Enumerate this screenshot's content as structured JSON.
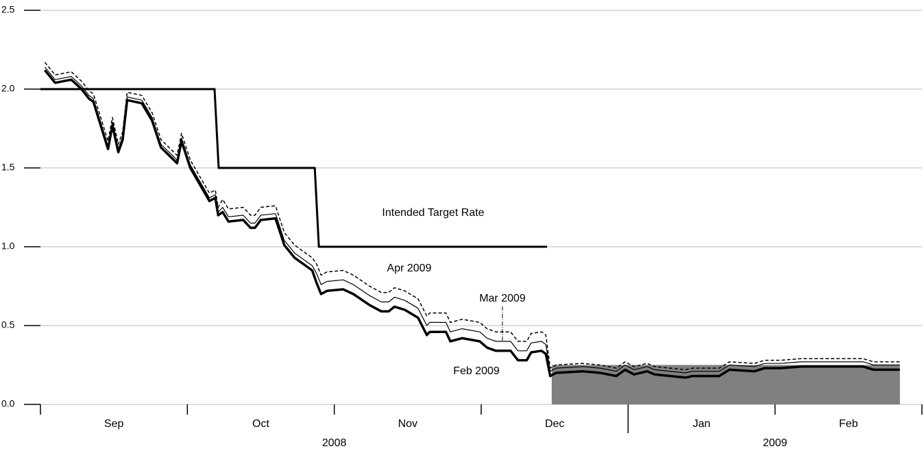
{
  "chart_data": {
    "type": "line",
    "ylim": [
      0,
      2.5
    ],
    "yticks": [
      {
        "value": 0,
        "label": "0.0"
      },
      {
        "value": 0.5,
        "label": "0.5"
      },
      {
        "value": 1,
        "label": "1.0"
      },
      {
        "value": 1.5,
        "label": "1.5"
      },
      {
        "value": 2,
        "label": "2.0"
      },
      {
        "value": 2.5,
        "label": "2.5"
      }
    ],
    "grid": true,
    "xlim": [
      0,
      6
    ],
    "months": [
      "Sep",
      "Oct",
      "Nov",
      "Dec",
      "Jan",
      "Feb"
    ],
    "years": [
      "2008",
      "2009"
    ],
    "x": [
      0.03,
      0.1,
      0.21,
      0.28,
      0.33,
      0.36,
      0.46,
      0.49,
      0.53,
      0.56,
      0.59,
      0.69,
      0.76,
      0.82,
      0.93,
      0.96,
      1.02,
      1.15,
      1.19,
      1.21,
      1.24,
      1.28,
      1.38,
      1.43,
      1.46,
      1.5,
      1.6,
      1.66,
      1.73,
      1.85,
      1.88,
      1.91,
      1.95,
      2.06,
      2.13,
      2.24,
      2.32,
      2.37,
      2.41,
      2.48,
      2.57,
      2.63,
      2.65,
      2.76,
      2.79,
      2.87,
      2.99,
      3.04,
      3.1,
      3.2,
      3.25,
      3.31,
      3.34,
      3.41,
      3.44,
      3.47,
      3.51,
      3.69,
      3.81,
      3.92,
      3.98,
      4.04,
      4.13,
      4.18,
      4.39,
      4.44,
      4.62,
      4.69,
      4.86,
      4.93,
      5.04,
      5.18,
      5.32,
      5.6,
      5.67,
      5.85
    ],
    "shaded": {
      "x": [
        3.48,
        5.85
      ],
      "y": [
        0,
        0.25
      ],
      "color": "#808080"
    },
    "series": [
      {
        "name": "Feb 2009",
        "color": "#000000",
        "style": "thick",
        "values": [
          2.12,
          2.04,
          2.06,
          2.0,
          1.94,
          1.92,
          1.62,
          1.77,
          1.6,
          1.68,
          1.93,
          1.91,
          1.8,
          1.63,
          1.53,
          1.67,
          1.5,
          1.29,
          1.31,
          1.2,
          1.22,
          1.16,
          1.17,
          1.12,
          1.12,
          1.17,
          1.18,
          1.01,
          0.93,
          0.85,
          0.77,
          0.7,
          0.72,
          0.73,
          0.7,
          0.63,
          0.59,
          0.59,
          0.62,
          0.6,
          0.55,
          0.44,
          0.46,
          0.46,
          0.4,
          0.42,
          0.4,
          0.36,
          0.34,
          0.34,
          0.28,
          0.28,
          0.33,
          0.34,
          0.32,
          0.18,
          0.2,
          0.21,
          0.2,
          0.18,
          0.22,
          0.19,
          0.21,
          0.19,
          0.17,
          0.18,
          0.18,
          0.22,
          0.21,
          0.23,
          0.23,
          0.24,
          0.24,
          0.24,
          0.22,
          0.22
        ]
      },
      {
        "name": "Mar 2009",
        "color": "#000000",
        "style": "thin",
        "values": [
          2.14,
          2.06,
          2.08,
          2.02,
          1.96,
          1.94,
          1.64,
          1.79,
          1.62,
          1.7,
          1.95,
          1.93,
          1.82,
          1.65,
          1.55,
          1.69,
          1.52,
          1.31,
          1.33,
          1.22,
          1.25,
          1.19,
          1.2,
          1.15,
          1.15,
          1.2,
          1.21,
          1.04,
          0.96,
          0.88,
          0.83,
          0.76,
          0.78,
          0.79,
          0.76,
          0.69,
          0.65,
          0.65,
          0.68,
          0.66,
          0.61,
          0.5,
          0.52,
          0.52,
          0.46,
          0.48,
          0.46,
          0.42,
          0.4,
          0.4,
          0.34,
          0.34,
          0.39,
          0.4,
          0.38,
          0.21,
          0.23,
          0.24,
          0.23,
          0.21,
          0.25,
          0.22,
          0.24,
          0.22,
          0.2,
          0.21,
          0.21,
          0.25,
          0.24,
          0.26,
          0.26,
          0.27,
          0.27,
          0.27,
          0.25,
          0.25
        ]
      },
      {
        "name": "Apr 2009",
        "color": "#000000",
        "style": "dashed",
        "values": [
          2.17,
          2.09,
          2.11,
          2.05,
          1.99,
          1.97,
          1.67,
          1.82,
          1.65,
          1.73,
          1.98,
          1.96,
          1.85,
          1.68,
          1.58,
          1.72,
          1.55,
          1.34,
          1.36,
          1.25,
          1.3,
          1.24,
          1.25,
          1.2,
          1.2,
          1.25,
          1.26,
          1.09,
          1.01,
          0.93,
          0.89,
          0.82,
          0.84,
          0.85,
          0.82,
          0.75,
          0.71,
          0.71,
          0.74,
          0.72,
          0.67,
          0.56,
          0.58,
          0.58,
          0.52,
          0.54,
          0.52,
          0.48,
          0.46,
          0.46,
          0.4,
          0.4,
          0.45,
          0.46,
          0.44,
          0.23,
          0.25,
          0.26,
          0.25,
          0.23,
          0.27,
          0.24,
          0.26,
          0.24,
          0.22,
          0.23,
          0.23,
          0.27,
          0.26,
          0.28,
          0.28,
          0.29,
          0.29,
          0.29,
          0.27,
          0.27
        ]
      },
      {
        "name": "Intended Target Rate",
        "color": "#000000",
        "style": "step",
        "x": [
          0,
          1.185,
          1.213,
          1.867,
          1.895,
          3.448
        ],
        "values": [
          2,
          2,
          1.5,
          1.5,
          1,
          1
        ]
      }
    ]
  }
}
